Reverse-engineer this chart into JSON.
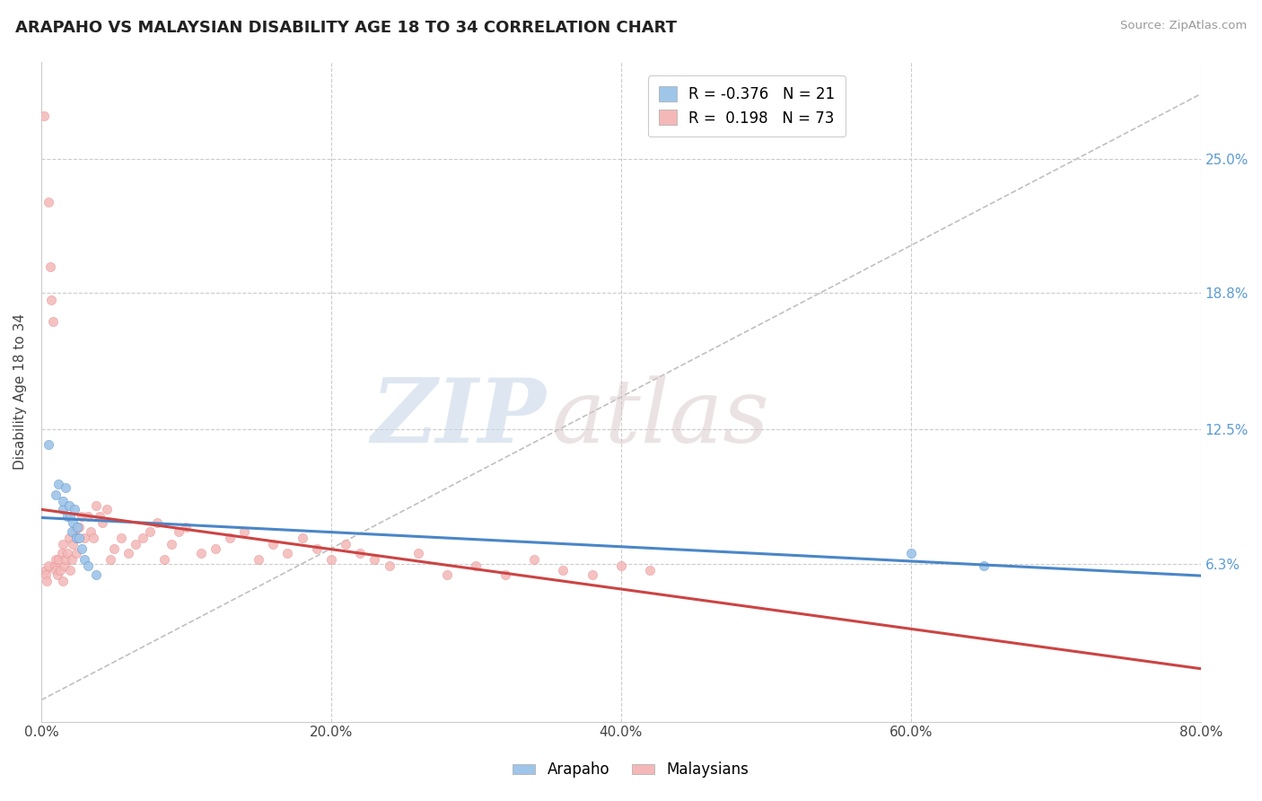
{
  "title": "ARAPAHO VS MALAYSIAN DISABILITY AGE 18 TO 34 CORRELATION CHART",
  "source": "Source: ZipAtlas.com",
  "ylabel": "Disability Age 18 to 34",
  "xlim": [
    0.0,
    0.8
  ],
  "ylim": [
    -0.01,
    0.295
  ],
  "xtick_labels": [
    "0.0%",
    "20.0%",
    "40.0%",
    "60.0%",
    "80.0%"
  ],
  "xtick_vals": [
    0.0,
    0.2,
    0.4,
    0.6,
    0.8
  ],
  "ytick_labels_right": [
    "6.3%",
    "12.5%",
    "18.8%",
    "25.0%"
  ],
  "ytick_vals_right": [
    0.063,
    0.125,
    0.188,
    0.25
  ],
  "arapaho_color": "#9fc5e8",
  "malaysian_color": "#f4b8b8",
  "arapaho_trend_color": "#4a86c8",
  "malaysian_trend_color": "#cc4444",
  "ref_line_color": "#c0c0c0",
  "legend_R_arapaho": "-0.376",
  "legend_N_arapaho": "21",
  "legend_R_malaysian": "0.198",
  "legend_N_malaysian": "73",
  "watermark_zip": "ZIP",
  "watermark_atlas": "atlas",
  "background_color": "#ffffff",
  "arapaho_x": [
    0.005,
    0.01,
    0.012,
    0.015,
    0.015,
    0.017,
    0.018,
    0.019,
    0.02,
    0.021,
    0.022,
    0.023,
    0.024,
    0.025,
    0.026,
    0.028,
    0.03,
    0.032,
    0.038,
    0.6,
    0.65
  ],
  "arapaho_y": [
    0.118,
    0.095,
    0.1,
    0.088,
    0.092,
    0.098,
    0.085,
    0.09,
    0.085,
    0.078,
    0.082,
    0.088,
    0.075,
    0.08,
    0.075,
    0.07,
    0.065,
    0.062,
    0.058,
    0.068,
    0.062
  ],
  "malaysian_x": [
    0.002,
    0.003,
    0.003,
    0.004,
    0.005,
    0.005,
    0.006,
    0.007,
    0.008,
    0.009,
    0.01,
    0.01,
    0.011,
    0.012,
    0.013,
    0.014,
    0.015,
    0.015,
    0.016,
    0.017,
    0.018,
    0.019,
    0.02,
    0.021,
    0.022,
    0.023,
    0.024,
    0.025,
    0.026,
    0.028,
    0.03,
    0.032,
    0.034,
    0.036,
    0.038,
    0.04,
    0.042,
    0.045,
    0.048,
    0.05,
    0.055,
    0.06,
    0.065,
    0.07,
    0.075,
    0.08,
    0.085,
    0.09,
    0.095,
    0.1,
    0.11,
    0.12,
    0.13,
    0.14,
    0.15,
    0.16,
    0.17,
    0.18,
    0.19,
    0.2,
    0.21,
    0.22,
    0.23,
    0.24,
    0.26,
    0.28,
    0.3,
    0.32,
    0.34,
    0.36,
    0.38,
    0.4,
    0.42
  ],
  "malaysian_y": [
    0.27,
    0.06,
    0.058,
    0.055,
    0.23,
    0.062,
    0.2,
    0.185,
    0.175,
    0.062,
    0.06,
    0.065,
    0.058,
    0.065,
    0.06,
    0.068,
    0.055,
    0.072,
    0.062,
    0.065,
    0.068,
    0.075,
    0.06,
    0.065,
    0.072,
    0.078,
    0.068,
    0.075,
    0.08,
    0.085,
    0.075,
    0.085,
    0.078,
    0.075,
    0.09,
    0.085,
    0.082,
    0.088,
    0.065,
    0.07,
    0.075,
    0.068,
    0.072,
    0.075,
    0.078,
    0.082,
    0.065,
    0.072,
    0.078,
    0.08,
    0.068,
    0.07,
    0.075,
    0.078,
    0.065,
    0.072,
    0.068,
    0.075,
    0.07,
    0.065,
    0.072,
    0.068,
    0.065,
    0.062,
    0.068,
    0.058,
    0.062,
    0.058,
    0.065,
    0.06,
    0.058,
    0.062,
    0.06
  ]
}
